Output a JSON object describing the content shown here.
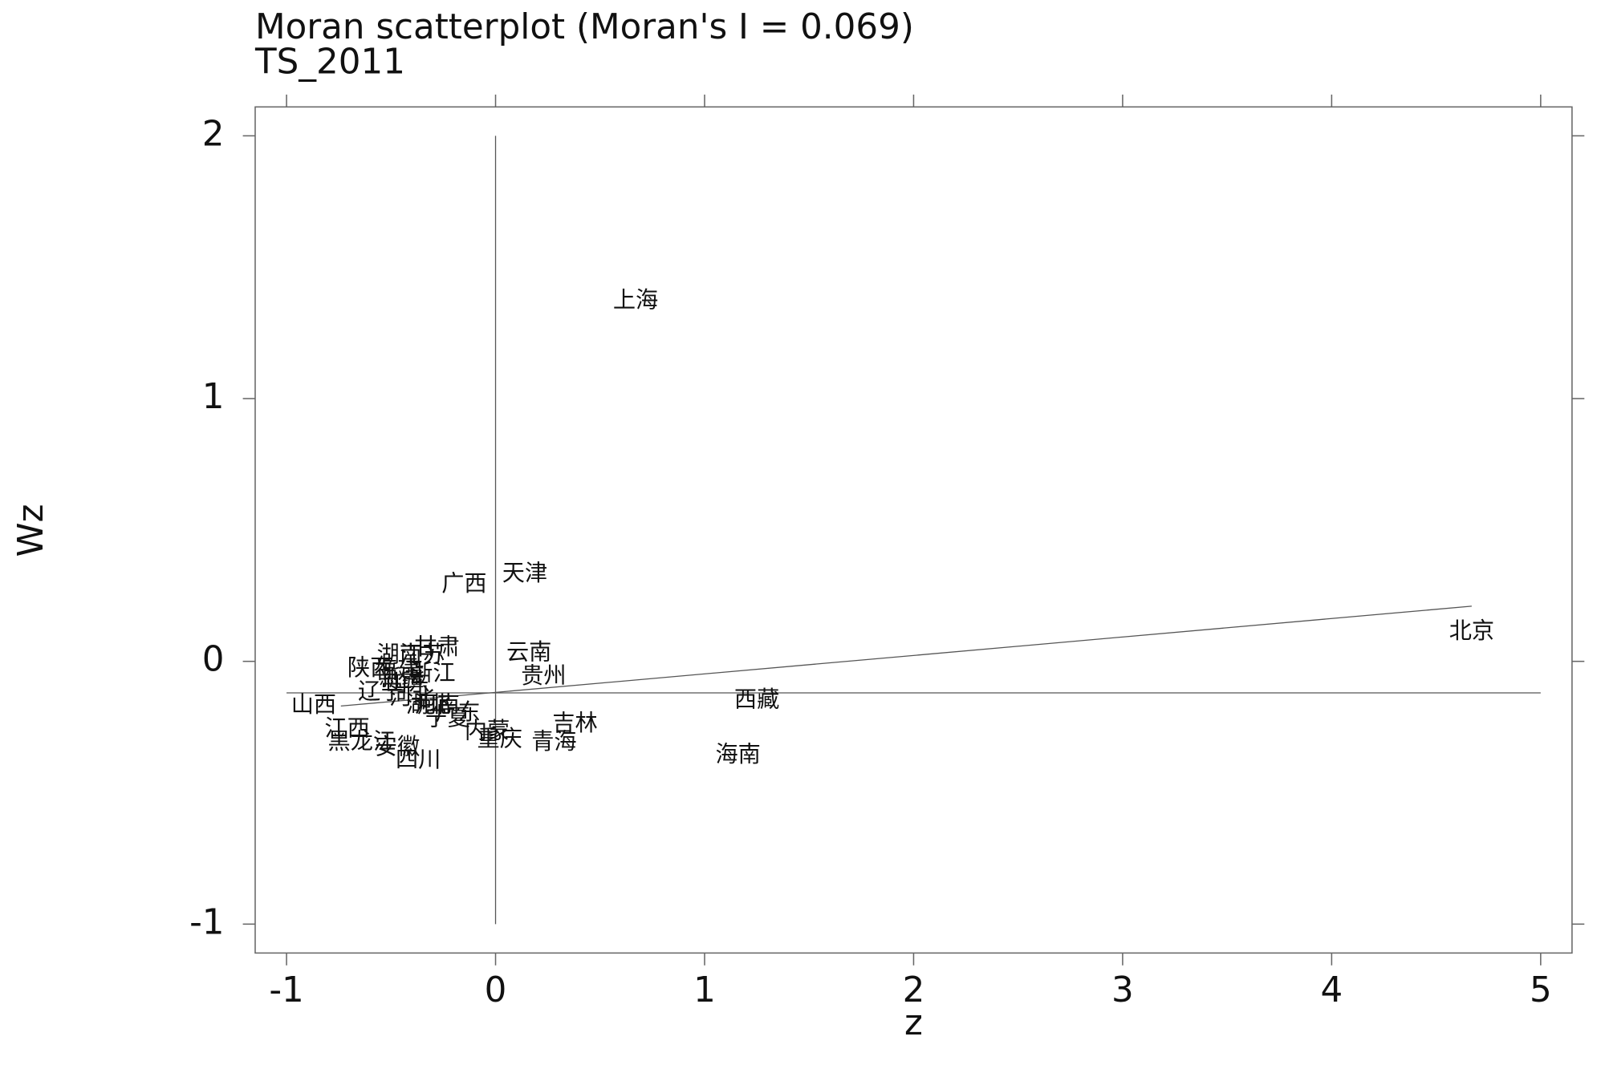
{
  "chart_data": {
    "type": "scatter",
    "title": "Moran scatterplot (Moran's I = 0.069)",
    "subtitle": "TS_2011",
    "x_label": "z",
    "y_label": "Wz",
    "labels": [
      "上海",
      "天津",
      "广西",
      "北京",
      "西藏",
      "海南",
      "云南",
      "贵州",
      "吉林",
      "青海",
      "重庆",
      "内蒙",
      "甘肃",
      "浙江",
      "陕西",
      "山西",
      "江西",
      "安徽",
      "四川",
      "宁夏",
      "广东",
      "辽宁",
      "湖南",
      "江苏",
      "福建",
      "新疆",
      "山东",
      "河北",
      "湖北",
      "河南",
      "黑龙江"
    ],
    "x": [
      0.67,
      0.14,
      -0.15,
      4.67,
      1.25,
      1.16,
      0.16,
      0.23,
      0.38,
      0.28,
      0.02,
      -0.04,
      -0.28,
      -0.3,
      -0.6,
      -0.87,
      -0.71,
      -0.47,
      -0.37,
      -0.23,
      -0.18,
      -0.55,
      -0.46,
      -0.35,
      -0.47,
      -0.45,
      -0.42,
      -0.4,
      -0.32,
      -0.28,
      -0.64
    ],
    "values": [
      1.37,
      0.33,
      0.29,
      0.11,
      -0.15,
      -0.36,
      0.03,
      -0.06,
      -0.24,
      -0.31,
      -0.3,
      -0.27,
      0.05,
      -0.05,
      -0.03,
      -0.17,
      -0.26,
      -0.33,
      -0.38,
      -0.22,
      -0.2,
      -0.12,
      0.02,
      0.02,
      -0.04,
      -0.07,
      -0.09,
      -0.14,
      -0.17,
      -0.17,
      -0.31
    ],
    "color": "#333333",
    "fit_x": [
      -0.74,
      4.67
    ],
    "fit_y": [
      -0.17,
      0.21
    ],
    "hline": -0.12,
    "vline": 0,
    "xlim": [
      -1.15,
      5.15
    ],
    "ylim": [
      -1.11,
      2.11
    ],
    "xticks": [
      -1,
      0,
      1,
      2,
      3,
      4,
      5
    ],
    "yticks": [
      -1,
      0,
      1,
      2
    ]
  }
}
